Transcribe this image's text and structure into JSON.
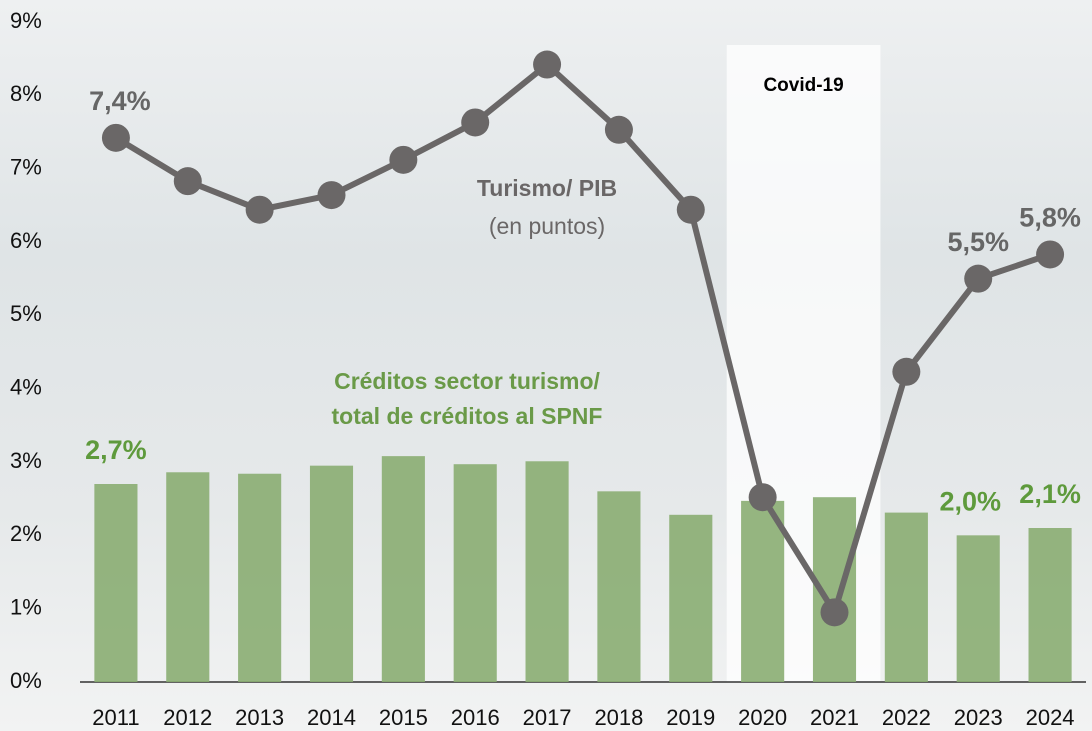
{
  "chart_data": {
    "type": "bar",
    "categories": [
      "2011",
      "2012",
      "2013",
      "2014",
      "2015",
      "2016",
      "2017",
      "2018",
      "2019",
      "2020",
      "2021",
      "2022",
      "2023",
      "2024"
    ],
    "series": [
      {
        "type": "bar",
        "name": [
          "Créditos sector turismo/",
          "total de créditos al SPNF"
        ],
        "color": "#8aad72",
        "values": [
          2.7,
          2.86,
          2.84,
          2.95,
          3.08,
          2.97,
          3.01,
          2.6,
          2.28,
          2.47,
          2.52,
          2.31,
          2.0,
          2.1
        ],
        "value_labels": [
          "2,7%",
          null,
          null,
          null,
          null,
          null,
          null,
          null,
          null,
          null,
          null,
          null,
          "2,0%",
          "2,1%"
        ]
      },
      {
        "type": "line",
        "name": "Turismo/ PIB",
        "note": "(en puntos)",
        "color": "#6a6767",
        "values": [
          7.42,
          6.83,
          6.44,
          6.64,
          7.12,
          7.63,
          8.42,
          7.53,
          6.44,
          2.52,
          0.95,
          4.23,
          5.5,
          5.83
        ],
        "value_labels": [
          "7,4%",
          null,
          null,
          null,
          null,
          null,
          null,
          null,
          null,
          null,
          null,
          null,
          "5,5%",
          "5,8%"
        ]
      }
    ],
    "annotations": [
      {
        "text": "Covid-19",
        "from": "2020",
        "to": "2021"
      }
    ],
    "ylim": [
      0,
      9
    ],
    "yticks": [
      {
        "value": 0,
        "label": "0%"
      },
      {
        "value": 1,
        "label": "1%"
      },
      {
        "value": 2,
        "label": "2%"
      },
      {
        "value": 3,
        "label": "3%"
      },
      {
        "value": 4,
        "label": "4%"
      },
      {
        "value": 5,
        "label": "5%"
      },
      {
        "value": 6,
        "label": "6%"
      },
      {
        "value": 7,
        "label": "7%"
      },
      {
        "value": 8,
        "label": "8%"
      },
      {
        "value": 9,
        "label": "9%"
      }
    ],
    "grid": false
  }
}
